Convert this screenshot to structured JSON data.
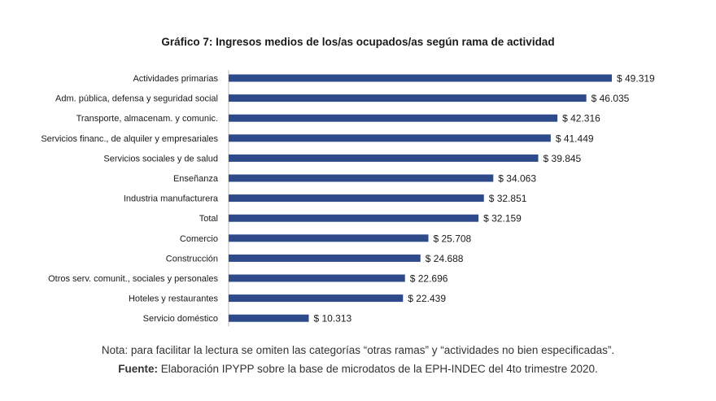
{
  "chart_data": {
    "type": "bar",
    "orientation": "horizontal",
    "title": "Gráfico 7: Ingresos medios de los/as ocupados/as según rama de actividad",
    "categories": [
      "Actividades primarias",
      "Adm. pública, defensa y seguridad social",
      "Transporte, almacenam. y comunic.",
      "Servicios financ., de alquiler y empresariales",
      "Servicios sociales y de salud",
      "Enseñanza",
      "Industria manufacturera",
      "Total",
      "Comercio",
      "Construcción",
      "Otros serv. comunit., sociales y personales",
      "Hoteles y restaurantes",
      "Servicio doméstico"
    ],
    "values": [
      49319,
      46035,
      42316,
      41449,
      39845,
      34063,
      32851,
      32159,
      25708,
      24688,
      22696,
      22439,
      10313
    ],
    "value_labels": [
      "$ 49.319",
      "$ 46.035",
      "$ 42.316",
      "$ 41.449",
      "$ 39.845",
      "$ 34.063",
      "$ 32.851",
      "$ 32.159",
      "$ 25.708",
      "$ 24.688",
      "$ 22.696",
      "$ 22.439",
      "$ 10.313"
    ],
    "xlim": [
      0,
      49319
    ],
    "grid": false,
    "bar_color": "#2e4a8a"
  },
  "note": "Nota: para facilitar la lectura se omiten las categorías “otras ramas” y “actividades no bien especificadas”.",
  "source": {
    "label": "Fuente:",
    "text": "Elaboración IPYPP sobre la base de microdatos de la EPH-INDEC del 4to trimestre 2020."
  }
}
